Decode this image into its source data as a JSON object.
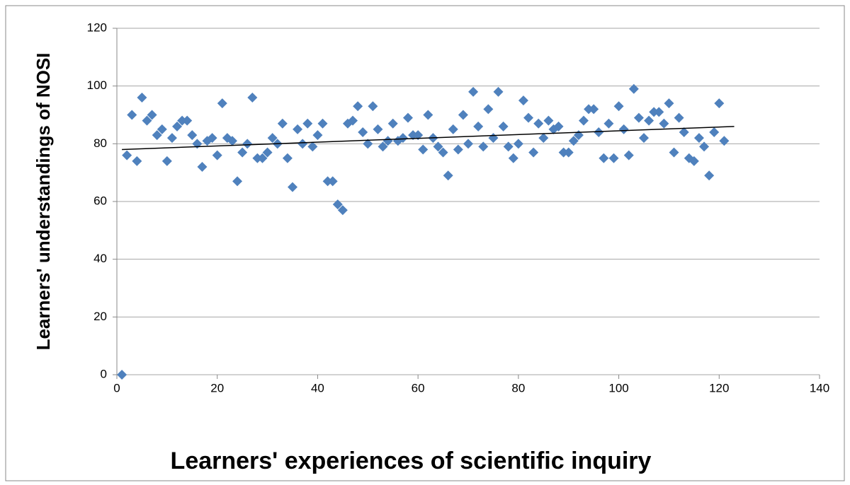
{
  "chart_data": {
    "type": "scatter",
    "xlabel": "Learners'  experiences of scientific inquiry",
    "ylabel": "Learners' understandings of NOSI",
    "color": "#4f81bd",
    "x": [
      1,
      2,
      3,
      4,
      5,
      6,
      7,
      8,
      9,
      10,
      11,
      12,
      13,
      14,
      15,
      16,
      17,
      18,
      19,
      20,
      21,
      22,
      23,
      24,
      25,
      26,
      27,
      28,
      29,
      30,
      31,
      32,
      33,
      34,
      35,
      36,
      37,
      38,
      39,
      40,
      41,
      42,
      43,
      44,
      45,
      46,
      47,
      48,
      49,
      50,
      51,
      52,
      53,
      54,
      55,
      56,
      57,
      58,
      59,
      60,
      61,
      62,
      63,
      64,
      65,
      66,
      67,
      68,
      69,
      70,
      71,
      72,
      73,
      74,
      75,
      76,
      77,
      78,
      79,
      80,
      81,
      82,
      83,
      84,
      85,
      86,
      87,
      88,
      89,
      90,
      91,
      92,
      93,
      94,
      95,
      96,
      97,
      98,
      99,
      100,
      101,
      102,
      103,
      104,
      105,
      106,
      107,
      108,
      109,
      110,
      111,
      112,
      113,
      114,
      115,
      116,
      117,
      118,
      119,
      120,
      121
    ],
    "values": [
      0,
      76,
      90,
      74,
      96,
      88,
      90,
      83,
      85,
      74,
      82,
      86,
      88,
      88,
      83,
      80,
      72,
      81,
      82,
      76,
      94,
      82,
      81,
      67,
      77,
      80,
      96,
      75,
      75,
      77,
      82,
      80,
      87,
      75,
      65,
      85,
      80,
      87,
      79,
      83,
      87,
      67,
      67,
      59,
      57,
      87,
      88,
      93,
      84,
      80,
      93,
      85,
      79,
      81,
      87,
      81,
      82,
      89,
      83,
      83,
      78,
      90,
      82,
      79,
      77,
      69,
      85,
      78,
      90,
      80,
      98,
      86,
      79,
      92,
      82,
      98,
      86,
      79,
      75,
      80,
      95,
      89,
      77,
      87,
      82,
      88,
      85,
      86,
      77,
      77,
      81,
      83,
      88,
      92,
      92,
      84,
      75,
      87,
      75,
      93,
      85,
      76,
      99,
      89,
      82,
      88,
      91,
      91,
      87,
      94,
      77,
      89,
      84,
      75,
      74,
      82,
      79,
      69,
      84,
      94,
      81
    ],
    "trendline": {
      "x": [
        1,
        123
      ],
      "values": [
        78,
        86
      ],
      "color": "#000000"
    },
    "xlim": [
      0,
      140
    ],
    "xticks": [
      0,
      20,
      40,
      60,
      80,
      100,
      120,
      140
    ],
    "ylim": [
      0,
      120
    ],
    "yticks": [
      0,
      20,
      40,
      60,
      80,
      100,
      120
    ],
    "grid": true
  }
}
